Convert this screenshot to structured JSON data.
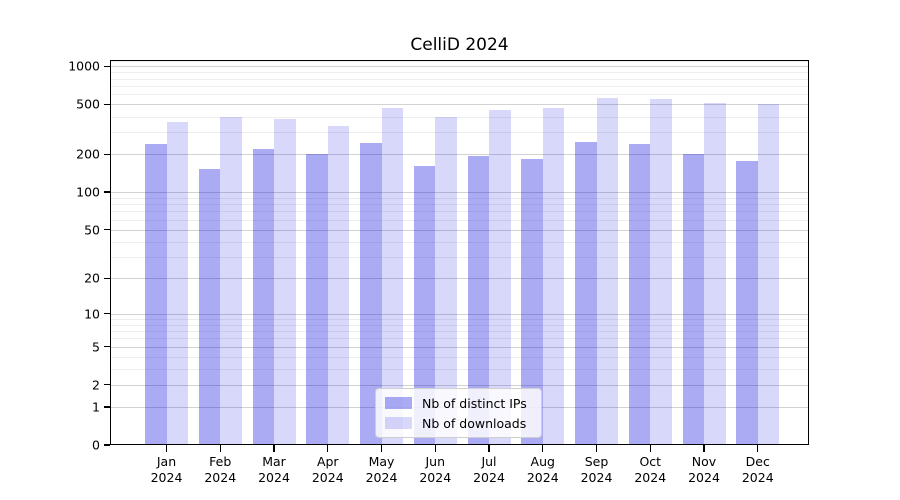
{
  "title": "CelliD 2024",
  "chart_data": {
    "type": "bar",
    "title": "CelliD 2024",
    "yscale": "log1p",
    "categories": [
      "Jan",
      "Feb",
      "Mar",
      "Apr",
      "May",
      "Jun",
      "Jul",
      "Aug",
      "Sep",
      "Oct",
      "Nov",
      "Dec"
    ],
    "category_year": "2024",
    "series": [
      {
        "name": "Nb of distinct IPs",
        "color": "rgba(13,13,222,0.35)",
        "values": [
          240,
          152,
          222,
          200,
          245,
          161,
          196,
          185,
          250,
          243,
          203,
          178
        ]
      },
      {
        "name": "Nb of downloads",
        "color": "rgba(13,13,222,0.16)",
        "values": [
          365,
          400,
          385,
          335,
          467,
          395,
          450,
          472,
          565,
          555,
          515,
          500
        ]
      }
    ],
    "y_ticks": [
      0,
      1,
      2,
      5,
      10,
      20,
      50,
      100,
      200,
      500,
      1000
    ],
    "y_minor_ticks": [
      3,
      4,
      6,
      7,
      8,
      9,
      30,
      40,
      60,
      70,
      80,
      90,
      300,
      400,
      600,
      700,
      800,
      900,
      1100
    ],
    "ylim": [
      0,
      1125
    ],
    "grid": true,
    "legend_position": "lower center"
  }
}
